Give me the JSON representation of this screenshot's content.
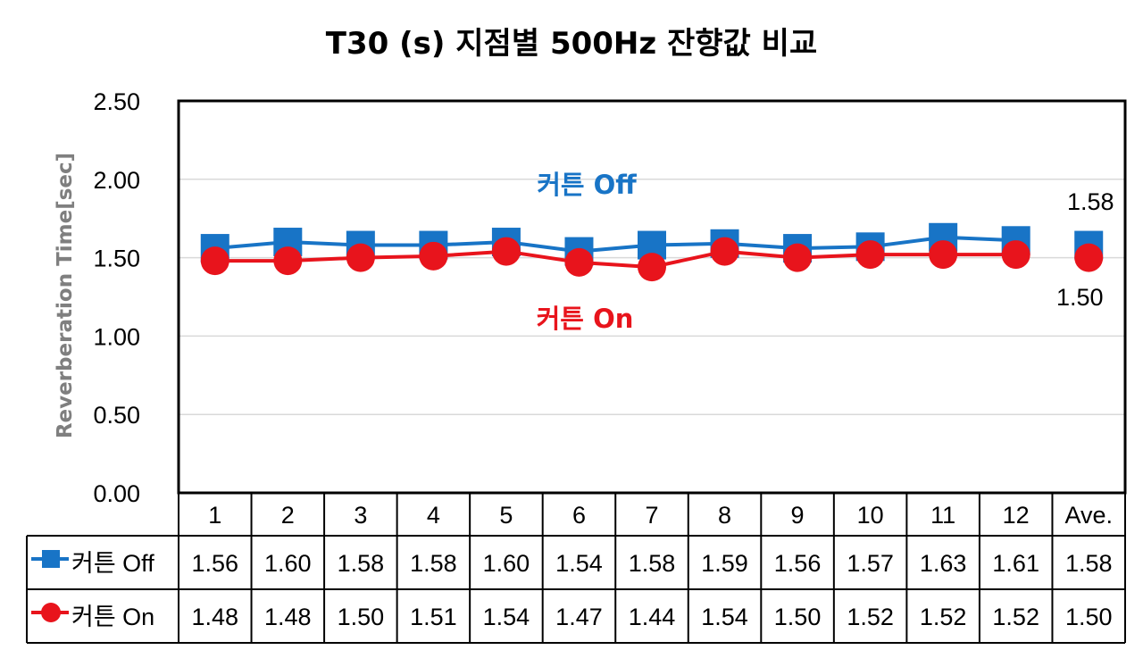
{
  "chart_data": {
    "type": "line",
    "title": "T30 (s) 지점별 500Hz 잔향값 비교",
    "ylabel": "Reverberation Time[sec]",
    "xlabel": "",
    "ylim": [
      0,
      2.5
    ],
    "yticks": [
      "0.00",
      "0.50",
      "1.00",
      "1.50",
      "2.00",
      "2.50"
    ],
    "ytick_values": [
      0,
      0.5,
      1.0,
      1.5,
      2.0,
      2.5
    ],
    "grid": true,
    "categories": [
      "1",
      "2",
      "3",
      "4",
      "5",
      "6",
      "7",
      "8",
      "9",
      "10",
      "11",
      "12",
      "Ave."
    ],
    "series": [
      {
        "name": "커튼 Off",
        "color": "#1874c6",
        "marker": "square",
        "values": [
          1.56,
          1.6,
          1.58,
          1.58,
          1.6,
          1.54,
          1.58,
          1.59,
          1.56,
          1.57,
          1.63,
          1.61,
          1.58
        ],
        "labels": [
          "1.56",
          "1.60",
          "1.58",
          "1.58",
          "1.60",
          "1.54",
          "1.58",
          "1.59",
          "1.56",
          "1.57",
          "1.63",
          "1.61",
          "1.58"
        ]
      },
      {
        "name": "커튼 On",
        "color": "#e8141c",
        "marker": "circle",
        "values": [
          1.48,
          1.48,
          1.5,
          1.51,
          1.54,
          1.47,
          1.44,
          1.54,
          1.5,
          1.52,
          1.52,
          1.52,
          1.5
        ],
        "labels": [
          "1.48",
          "1.48",
          "1.50",
          "1.51",
          "1.54",
          "1.47",
          "1.44",
          "1.54",
          "1.50",
          "1.52",
          "1.52",
          "1.52",
          "1.50"
        ]
      }
    ],
    "annotations": [
      {
        "text": "커튼 Off",
        "series": 0
      },
      {
        "text": "커튼 On",
        "series": 1
      }
    ],
    "avg_labels": [
      "1.58",
      "1.50"
    ],
    "legend": "data-table"
  }
}
